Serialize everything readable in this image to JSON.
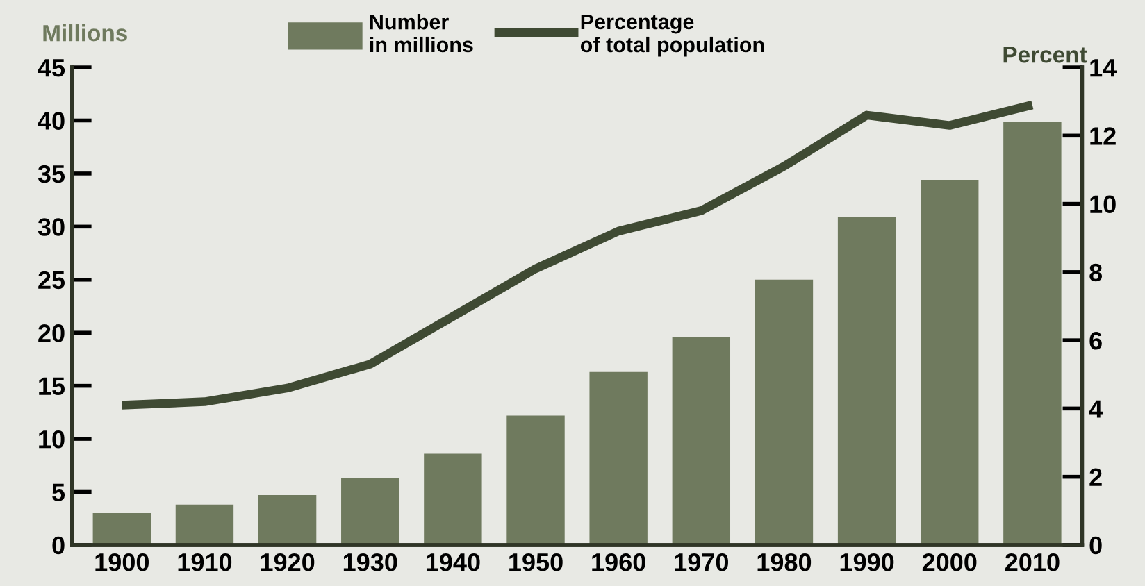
{
  "chart_data": {
    "type": "bar",
    "categories": [
      "1900",
      "1910",
      "1920",
      "1930",
      "1940",
      "1950",
      "1960",
      "1970",
      "1980",
      "1990",
      "2000",
      "2010"
    ],
    "series": [
      {
        "name": "Number\nin millions",
        "color": "#6f7a5e",
        "values": [
          3.0,
          3.8,
          4.7,
          6.3,
          8.6,
          12.2,
          16.3,
          19.6,
          25.0,
          30.9,
          34.4,
          39.9
        ]
      },
      {
        "name": "Percentage\nof total population",
        "type": "line",
        "axis": "y2",
        "color": "#3f4a33",
        "values": [
          4.1,
          4.2,
          4.6,
          5.3,
          6.7,
          8.1,
          9.2,
          9.8,
          11.1,
          12.6,
          12.3,
          12.9
        ]
      }
    ],
    "ylabel": "Millions",
    "y2label": "Percent",
    "ylim": [
      0,
      45
    ],
    "yticks": [
      0,
      5,
      10,
      15,
      20,
      25,
      30,
      35,
      40,
      45
    ],
    "y2lim": [
      0,
      14
    ],
    "y2ticks": [
      0,
      2,
      4,
      6,
      8,
      10,
      12,
      14
    ],
    "grid": false,
    "legend": "top",
    "marker": "none",
    "line_style": "solid"
  }
}
